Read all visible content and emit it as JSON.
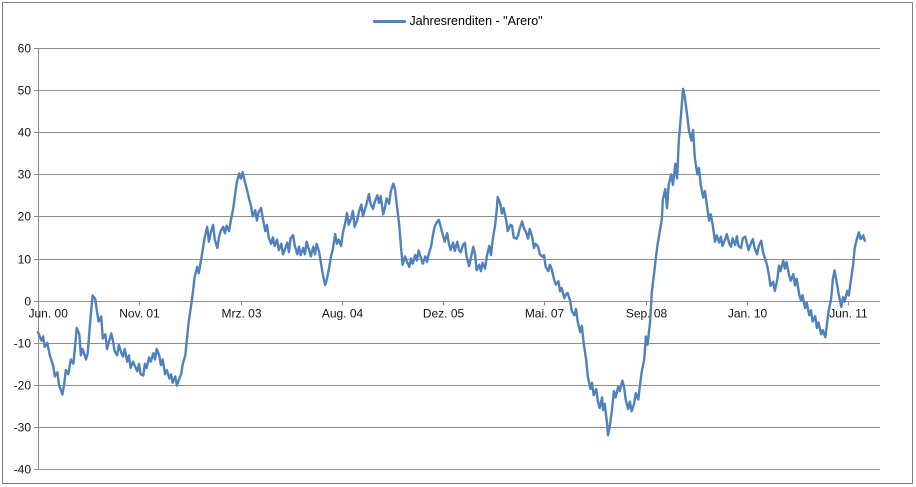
{
  "chart": {
    "legend": {
      "label": "Jahresrenditen - \"Arero\""
    },
    "colors": {
      "series": "#4F81BD",
      "gridline": "#8C8C8C",
      "axis": "#8C8C8C",
      "tick_label": "#141414",
      "border": "#808080",
      "background": "#FFFFFF"
    }
  },
  "chart_data": {
    "type": "line",
    "title": "",
    "series_name": "Jahresrenditen - \"Arero\"",
    "legend_position": "top-center",
    "grid": "horizontal",
    "ylim": [
      -40,
      60
    ],
    "y_ticks": [
      60,
      50,
      40,
      30,
      20,
      10,
      0,
      -10,
      -20,
      -30,
      -40
    ],
    "x_tick_labels": [
      "Jun. 00",
      "Nov. 01",
      "Mrz. 03",
      "Aug. 04",
      "Dez. 05",
      "Mai. 07",
      "Sep. 08",
      "Jan. 10",
      "Jun. 11"
    ],
    "x_tick_positions": [
      0.0,
      0.12,
      0.241,
      0.361,
      0.481,
      0.601,
      0.722,
      0.842,
      0.962
    ],
    "points": [
      [
        0.0,
        -7.5
      ],
      [
        0.004,
        -9.5
      ],
      [
        0.006,
        -8.5
      ],
      [
        0.008,
        -11
      ],
      [
        0.011,
        -10
      ],
      [
        0.014,
        -13
      ],
      [
        0.018,
        -15.5
      ],
      [
        0.02,
        -18
      ],
      [
        0.023,
        -17
      ],
      [
        0.025,
        -20
      ],
      [
        0.029,
        -22.3
      ],
      [
        0.031,
        -20
      ],
      [
        0.033,
        -16.5
      ],
      [
        0.036,
        -17.5
      ],
      [
        0.039,
        -14
      ],
      [
        0.042,
        -15
      ],
      [
        0.044,
        -11
      ],
      [
        0.046,
        -6.5
      ],
      [
        0.049,
        -8
      ],
      [
        0.051,
        -13
      ],
      [
        0.053,
        -11.5
      ],
      [
        0.057,
        -14
      ],
      [
        0.059,
        -12.5
      ],
      [
        0.062,
        -5
      ],
      [
        0.064,
        -0.5
      ],
      [
        0.065,
        1.2
      ],
      [
        0.068,
        0.3
      ],
      [
        0.07,
        -2.5
      ],
      [
        0.072,
        -5
      ],
      [
        0.075,
        -3.8
      ],
      [
        0.077,
        -9
      ],
      [
        0.08,
        -8
      ],
      [
        0.082,
        -11.5
      ],
      [
        0.084,
        -10
      ],
      [
        0.087,
        -7.8
      ],
      [
        0.089,
        -9.5
      ],
      [
        0.091,
        -12
      ],
      [
        0.094,
        -13
      ],
      [
        0.096,
        -10.5
      ],
      [
        0.099,
        -12.5
      ],
      [
        0.101,
        -13.3
      ],
      [
        0.103,
        -11.5
      ],
      [
        0.106,
        -14.5
      ],
      [
        0.108,
        -13
      ],
      [
        0.11,
        -16
      ],
      [
        0.113,
        -14.5
      ],
      [
        0.115,
        -15.5
      ],
      [
        0.118,
        -16.8
      ],
      [
        0.12,
        -15
      ],
      [
        0.122,
        -17.5
      ],
      [
        0.125,
        -17.8
      ],
      [
        0.127,
        -15
      ],
      [
        0.129,
        -16
      ],
      [
        0.132,
        -13.5
      ],
      [
        0.134,
        -14.5
      ],
      [
        0.137,
        -12.5
      ],
      [
        0.139,
        -14
      ],
      [
        0.141,
        -11.5
      ],
      [
        0.144,
        -13
      ],
      [
        0.146,
        -15.3
      ],
      [
        0.148,
        -14
      ],
      [
        0.151,
        -17.5
      ],
      [
        0.153,
        -16.5
      ],
      [
        0.156,
        -18.5
      ],
      [
        0.158,
        -17.5
      ],
      [
        0.16,
        -19.5
      ],
      [
        0.163,
        -18
      ],
      [
        0.165,
        -20.2
      ],
      [
        0.167,
        -19
      ],
      [
        0.17,
        -17.5
      ],
      [
        0.172,
        -15
      ],
      [
        0.175,
        -13
      ],
      [
        0.177,
        -9
      ],
      [
        0.179,
        -5
      ],
      [
        0.182,
        -1
      ],
      [
        0.184,
        2
      ],
      [
        0.186,
        5.5
      ],
      [
        0.189,
        8
      ],
      [
        0.191,
        6.5
      ],
      [
        0.194,
        10
      ],
      [
        0.196,
        12.5
      ],
      [
        0.198,
        15
      ],
      [
        0.201,
        17.5
      ],
      [
        0.203,
        14
      ],
      [
        0.205,
        16
      ],
      [
        0.208,
        18
      ],
      [
        0.21,
        14.5
      ],
      [
        0.213,
        12.5
      ],
      [
        0.215,
        15
      ],
      [
        0.217,
        16.5
      ],
      [
        0.22,
        17.5
      ],
      [
        0.222,
        16
      ],
      [
        0.224,
        17.8
      ],
      [
        0.227,
        16.5
      ],
      [
        0.229,
        19
      ],
      [
        0.232,
        22
      ],
      [
        0.234,
        25
      ],
      [
        0.236,
        28
      ],
      [
        0.239,
        30.2
      ],
      [
        0.241,
        29
      ],
      [
        0.243,
        30.5
      ],
      [
        0.246,
        28
      ],
      [
        0.248,
        26.5
      ],
      [
        0.251,
        24
      ],
      [
        0.253,
        22.5
      ],
      [
        0.255,
        20
      ],
      [
        0.258,
        21.5
      ],
      [
        0.26,
        19
      ],
      [
        0.262,
        21
      ],
      [
        0.265,
        22
      ],
      [
        0.267,
        19.5
      ],
      [
        0.27,
        16.5
      ],
      [
        0.272,
        18
      ],
      [
        0.274,
        15
      ],
      [
        0.277,
        13.5
      ],
      [
        0.279,
        15
      ],
      [
        0.281,
        13
      ],
      [
        0.284,
        14.5
      ],
      [
        0.286,
        12
      ],
      [
        0.289,
        13.5
      ],
      [
        0.291,
        11
      ],
      [
        0.293,
        12
      ],
      [
        0.296,
        13.8
      ],
      [
        0.298,
        11.5
      ],
      [
        0.3,
        14.8
      ],
      [
        0.303,
        15.5
      ],
      [
        0.305,
        13
      ],
      [
        0.308,
        11
      ],
      [
        0.31,
        12.8
      ],
      [
        0.312,
        10.8
      ],
      [
        0.315,
        12.5
      ],
      [
        0.317,
        11
      ],
      [
        0.319,
        14
      ],
      [
        0.322,
        12
      ],
      [
        0.324,
        10.5
      ],
      [
        0.327,
        12.8
      ],
      [
        0.329,
        11
      ],
      [
        0.331,
        13.5
      ],
      [
        0.334,
        11.5
      ],
      [
        0.336,
        9
      ],
      [
        0.338,
        6.5
      ],
      [
        0.341,
        3.7
      ],
      [
        0.343,
        5
      ],
      [
        0.346,
        8
      ],
      [
        0.348,
        10.5
      ],
      [
        0.35,
        12
      ],
      [
        0.353,
        15.8
      ],
      [
        0.355,
        13.5
      ],
      [
        0.357,
        14.5
      ],
      [
        0.36,
        13
      ],
      [
        0.362,
        16
      ],
      [
        0.365,
        18.5
      ],
      [
        0.367,
        20.8
      ],
      [
        0.369,
        18
      ],
      [
        0.372,
        19.5
      ],
      [
        0.374,
        21.3
      ],
      [
        0.376,
        17.5
      ],
      [
        0.379,
        19
      ],
      [
        0.381,
        21
      ],
      [
        0.384,
        22.8
      ],
      [
        0.386,
        20
      ],
      [
        0.388,
        21.5
      ],
      [
        0.391,
        23.5
      ],
      [
        0.393,
        25.3
      ],
      [
        0.395,
        23
      ],
      [
        0.398,
        21.8
      ],
      [
        0.4,
        23.5
      ],
      [
        0.403,
        25
      ],
      [
        0.405,
        23.2
      ],
      [
        0.407,
        24.8
      ],
      [
        0.41,
        20.5
      ],
      [
        0.412,
        22
      ],
      [
        0.414,
        24.3
      ],
      [
        0.417,
        23
      ],
      [
        0.419,
        26
      ],
      [
        0.422,
        27.8
      ],
      [
        0.424,
        26.5
      ],
      [
        0.426,
        23
      ],
      [
        0.429,
        18
      ],
      [
        0.431,
        13
      ],
      [
        0.433,
        8.5
      ],
      [
        0.436,
        10.5
      ],
      [
        0.438,
        9.3
      ],
      [
        0.441,
        8
      ],
      [
        0.443,
        10
      ],
      [
        0.445,
        8.8
      ],
      [
        0.448,
        10.8
      ],
      [
        0.45,
        9.5
      ],
      [
        0.452,
        11.9
      ],
      [
        0.455,
        10
      ],
      [
        0.457,
        8.8
      ],
      [
        0.46,
        10.5
      ],
      [
        0.462,
        9.2
      ],
      [
        0.464,
        11
      ],
      [
        0.467,
        13
      ],
      [
        0.469,
        15.5
      ],
      [
        0.471,
        17.5
      ],
      [
        0.474,
        18.7
      ],
      [
        0.476,
        19.2
      ],
      [
        0.479,
        17
      ],
      [
        0.481,
        15.5
      ],
      [
        0.483,
        14
      ],
      [
        0.486,
        16
      ],
      [
        0.488,
        13.5
      ],
      [
        0.49,
        12
      ],
      [
        0.493,
        13.8
      ],
      [
        0.495,
        11.8
      ],
      [
        0.498,
        14
      ],
      [
        0.5,
        12
      ],
      [
        0.502,
        11.5
      ],
      [
        0.505,
        13.3
      ],
      [
        0.507,
        13.7
      ],
      [
        0.509,
        10.5
      ],
      [
        0.512,
        8.2
      ],
      [
        0.514,
        10
      ],
      [
        0.517,
        12.8
      ],
      [
        0.519,
        11
      ],
      [
        0.521,
        7.2
      ],
      [
        0.524,
        8.5
      ],
      [
        0.526,
        7
      ],
      [
        0.528,
        9
      ],
      [
        0.531,
        7.6
      ],
      [
        0.533,
        10.5
      ],
      [
        0.536,
        13
      ],
      [
        0.538,
        10.8
      ],
      [
        0.54,
        14.5
      ],
      [
        0.543,
        18
      ],
      [
        0.545,
        22
      ],
      [
        0.546,
        24.6
      ],
      [
        0.549,
        23
      ],
      [
        0.551,
        20.7
      ],
      [
        0.553,
        22
      ],
      [
        0.556,
        19
      ],
      [
        0.558,
        16.5
      ],
      [
        0.561,
        18
      ],
      [
        0.563,
        17.8
      ],
      [
        0.565,
        15
      ],
      [
        0.568,
        14.7
      ],
      [
        0.57,
        15.3
      ],
      [
        0.572,
        17
      ],
      [
        0.575,
        18.8
      ],
      [
        0.577,
        17.3
      ],
      [
        0.58,
        16
      ],
      [
        0.582,
        14.7
      ],
      [
        0.584,
        17
      ],
      [
        0.587,
        15
      ],
      [
        0.589,
        12.5
      ],
      [
        0.591,
        13.5
      ],
      [
        0.594,
        12.8
      ],
      [
        0.596,
        11
      ],
      [
        0.599,
        10.4
      ],
      [
        0.601,
        10.8
      ],
      [
        0.603,
        8
      ],
      [
        0.606,
        7
      ],
      [
        0.608,
        8.5
      ],
      [
        0.61,
        7.6
      ],
      [
        0.613,
        5
      ],
      [
        0.615,
        3.8
      ],
      [
        0.618,
        4.6
      ],
      [
        0.62,
        2.2
      ],
      [
        0.622,
        3
      ],
      [
        0.625,
        0.6
      ],
      [
        0.627,
        1.5
      ],
      [
        0.629,
        1.8
      ],
      [
        0.632,
        0
      ],
      [
        0.634,
        -2.5
      ],
      [
        0.637,
        -3.5
      ],
      [
        0.639,
        -2
      ],
      [
        0.641,
        -5
      ],
      [
        0.644,
        -7.5
      ],
      [
        0.646,
        -6
      ],
      [
        0.648,
        -10
      ],
      [
        0.651,
        -14
      ],
      [
        0.653,
        -18
      ],
      [
        0.656,
        -21
      ],
      [
        0.658,
        -19.5
      ],
      [
        0.66,
        -22.5
      ],
      [
        0.663,
        -21
      ],
      [
        0.665,
        -24
      ],
      [
        0.667,
        -25.5
      ],
      [
        0.67,
        -23
      ],
      [
        0.671,
        -26
      ],
      [
        0.673,
        -24.5
      ],
      [
        0.676,
        -29.5
      ],
      [
        0.677,
        -32
      ],
      [
        0.679,
        -30
      ],
      [
        0.682,
        -25.5
      ],
      [
        0.684,
        -21.5
      ],
      [
        0.686,
        -23
      ],
      [
        0.689,
        -20.5
      ],
      [
        0.691,
        -21.5
      ],
      [
        0.694,
        -19
      ],
      [
        0.696,
        -20.5
      ],
      [
        0.698,
        -23.5
      ],
      [
        0.701,
        -25.8
      ],
      [
        0.703,
        -24
      ],
      [
        0.705,
        -26.3
      ],
      [
        0.708,
        -24.5
      ],
      [
        0.71,
        -22
      ],
      [
        0.713,
        -23.5
      ],
      [
        0.715,
        -20
      ],
      [
        0.717,
        -17
      ],
      [
        0.72,
        -14
      ],
      [
        0.722,
        -8.5
      ],
      [
        0.724,
        -10.5
      ],
      [
        0.727,
        -5
      ],
      [
        0.729,
        2
      ],
      [
        0.732,
        6.9
      ],
      [
        0.734,
        10.5
      ],
      [
        0.736,
        13.5
      ],
      [
        0.739,
        17
      ],
      [
        0.741,
        19.5
      ],
      [
        0.742,
        24
      ],
      [
        0.745,
        26.5
      ],
      [
        0.747,
        22
      ],
      [
        0.749,
        27.5
      ],
      [
        0.752,
        30
      ],
      [
        0.754,
        27.5
      ],
      [
        0.757,
        32.5
      ],
      [
        0.759,
        29
      ],
      [
        0.761,
        38
      ],
      [
        0.764,
        45
      ],
      [
        0.766,
        50.3
      ],
      [
        0.768,
        48.5
      ],
      [
        0.771,
        44
      ],
      [
        0.773,
        40.5
      ],
      [
        0.776,
        38
      ],
      [
        0.778,
        40.5
      ],
      [
        0.78,
        34
      ],
      [
        0.783,
        30
      ],
      [
        0.785,
        31.5
      ],
      [
        0.787,
        27.5
      ],
      [
        0.79,
        24.5
      ],
      [
        0.792,
        26
      ],
      [
        0.795,
        21.8
      ],
      [
        0.797,
        19
      ],
      [
        0.799,
        20.5
      ],
      [
        0.802,
        17
      ],
      [
        0.804,
        14
      ],
      [
        0.806,
        15.5
      ],
      [
        0.809,
        13.8
      ],
      [
        0.811,
        15.2
      ],
      [
        0.813,
        13
      ],
      [
        0.816,
        14.5
      ],
      [
        0.818,
        15.8
      ],
      [
        0.821,
        13.5
      ],
      [
        0.823,
        12.8
      ],
      [
        0.825,
        14.8
      ],
      [
        0.828,
        13.2
      ],
      [
        0.83,
        15.3
      ],
      [
        0.832,
        13
      ],
      [
        0.835,
        12.5
      ],
      [
        0.837,
        14.8
      ],
      [
        0.84,
        15.2
      ],
      [
        0.842,
        13.5
      ],
      [
        0.844,
        12
      ],
      [
        0.847,
        13.8
      ],
      [
        0.849,
        14.6
      ],
      [
        0.851,
        12.5
      ],
      [
        0.854,
        11
      ],
      [
        0.856,
        13
      ],
      [
        0.859,
        14.2
      ],
      [
        0.861,
        11.5
      ],
      [
        0.863,
        10.3
      ],
      [
        0.866,
        8.3
      ],
      [
        0.868,
        6
      ],
      [
        0.87,
        3.5
      ],
      [
        0.873,
        4.5
      ],
      [
        0.875,
        2.3
      ],
      [
        0.878,
        5
      ],
      [
        0.88,
        8.3
      ],
      [
        0.882,
        7
      ],
      [
        0.885,
        9.5
      ],
      [
        0.887,
        7.6
      ],
      [
        0.889,
        9.2
      ],
      [
        0.892,
        6
      ],
      [
        0.894,
        4.7
      ],
      [
        0.897,
        6.3
      ],
      [
        0.899,
        3.6
      ],
      [
        0.901,
        5.2
      ],
      [
        0.904,
        1.5
      ],
      [
        0.906,
        0
      ],
      [
        0.908,
        1.3
      ],
      [
        0.911,
        -1.8
      ],
      [
        0.913,
        -0.5
      ],
      [
        0.916,
        -3.5
      ],
      [
        0.918,
        -2.3
      ],
      [
        0.92,
        -5
      ],
      [
        0.923,
        -3.7
      ],
      [
        0.925,
        -6.5
      ],
      [
        0.927,
        -5.2
      ],
      [
        0.93,
        -8
      ],
      [
        0.932,
        -7
      ],
      [
        0.935,
        -8.7
      ],
      [
        0.937,
        -5.5
      ],
      [
        0.939,
        -2.5
      ],
      [
        0.942,
        0.5
      ],
      [
        0.944,
        5
      ],
      [
        0.946,
        7.2
      ],
      [
        0.949,
        3.8
      ],
      [
        0.951,
        1.5
      ],
      [
        0.954,
        -1.5
      ],
      [
        0.956,
        0.8
      ],
      [
        0.958,
        -0.3
      ],
      [
        0.961,
        2.3
      ],
      [
        0.963,
        1.2
      ],
      [
        0.965,
        4.2
      ],
      [
        0.968,
        8.5
      ],
      [
        0.97,
        12.5
      ],
      [
        0.973,
        15
      ],
      [
        0.975,
        16.2
      ],
      [
        0.977,
        14.6
      ],
      [
        0.98,
        15.5
      ],
      [
        0.982,
        14.2
      ]
    ]
  }
}
